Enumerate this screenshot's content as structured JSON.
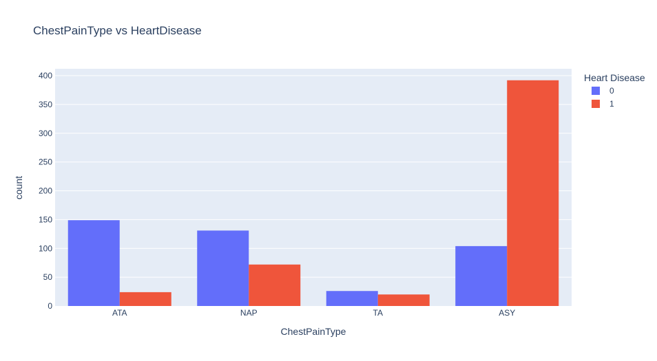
{
  "chart_data": {
    "type": "bar",
    "title": "ChestPainType vs HeartDisease",
    "xlabel": "ChestPainType",
    "ylabel": "count",
    "categories": [
      "ATA",
      "NAP",
      "TA",
      "ASY"
    ],
    "series": [
      {
        "name": "0",
        "values": [
          149,
          131,
          26,
          104
        ],
        "color": "#636efa"
      },
      {
        "name": "1",
        "values": [
          24,
          72,
          20,
          392
        ],
        "color": "#ef553b"
      }
    ],
    "ylim": [
      0,
      412
    ],
    "yticks": [
      0,
      50,
      100,
      150,
      200,
      250,
      300,
      350,
      400
    ],
    "grid": true,
    "legend": {
      "title": "Heart Disease",
      "position": "right"
    },
    "colors": {
      "plot_bg": "#e5ecf6",
      "grid": "#ffffff",
      "text": "#2a3f5f"
    }
  }
}
